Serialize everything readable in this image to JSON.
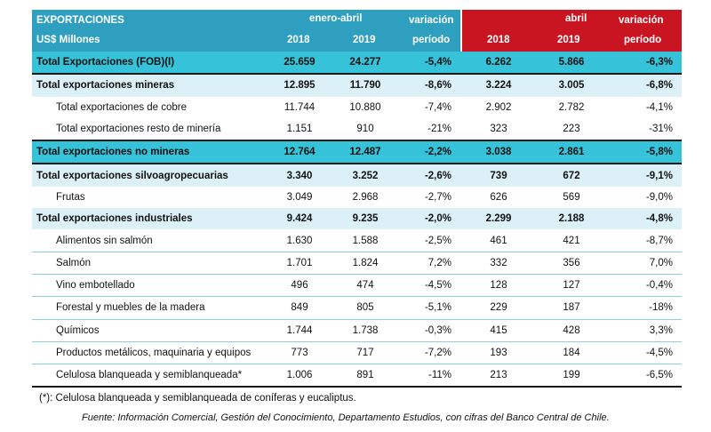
{
  "header": {
    "title": "EXPORTACIONES",
    "unit": "US$ Millones",
    "group1": "enero-abril",
    "group2": "abril",
    "year1": "2018",
    "year2": "2019",
    "variation_line1": "variación",
    "variation_line2": "período"
  },
  "rows": [
    {
      "label": "Total Exportaciones (FOB)(I)",
      "a": "25.659",
      "b": "24.277",
      "v1": "-5,4%",
      "c": "6.262",
      "d": "5.866",
      "v2": "-6,3%"
    },
    {
      "label": "Total exportaciones mineras",
      "a": "12.895",
      "b": "11.790",
      "v1": "-8,6%",
      "c": "3.224",
      "d": "3.005",
      "v2": "-6,8%"
    },
    {
      "label": "Total exportaciones de cobre",
      "a": "11.744",
      "b": "10.880",
      "v1": "-7,4%",
      "c": "2.902",
      "d": "2.782",
      "v2": "-4,1%"
    },
    {
      "label": "Total exportaciones resto de minería",
      "a": "1.151",
      "b": "910",
      "v1": "-21%",
      "c": "323",
      "d": "223",
      "v2": "-31%"
    },
    {
      "label": "Total exportaciones no mineras",
      "a": "12.764",
      "b": "12.487",
      "v1": "-2,2%",
      "c": "3.038",
      "d": "2.861",
      "v2": "-5,8%"
    },
    {
      "label": "Total exportaciones silvoagropecuarias",
      "a": "3.340",
      "b": "3.252",
      "v1": "-2,6%",
      "c": "739",
      "d": "672",
      "v2": "-9,1%"
    },
    {
      "label": "Frutas",
      "a": "3.049",
      "b": "2.968",
      "v1": "-2,7%",
      "c": "626",
      "d": "569",
      "v2": "-9,0%"
    },
    {
      "label": "Total exportaciones industriales",
      "a": "9.424",
      "b": "9.235",
      "v1": "-2,0%",
      "c": "2.299",
      "d": "2.188",
      "v2": "-4,8%"
    },
    {
      "label": "Alimentos sin salmón",
      "a": "1.630",
      "b": "1.588",
      "v1": "-2,5%",
      "c": "461",
      "d": "421",
      "v2": "-8,7%"
    },
    {
      "label": "Salmón",
      "a": "1.701",
      "b": "1.824",
      "v1": "7,2%",
      "c": "332",
      "d": "356",
      "v2": "7,0%"
    },
    {
      "label": "Vino embotellado",
      "a": "496",
      "b": "474",
      "v1": "-4,5%",
      "c": "128",
      "d": "127",
      "v2": "-0,4%"
    },
    {
      "label": "Forestal y muebles de la madera",
      "a": "849",
      "b": "805",
      "v1": "-5,1%",
      "c": "229",
      "d": "187",
      "v2": "-18%"
    },
    {
      "label": "Químicos",
      "a": "1.744",
      "b": "1.738",
      "v1": "-0,3%",
      "c": "415",
      "d": "428",
      "v2": "3,3%"
    },
    {
      "label": "Productos metálicos, maquinaria y equipos",
      "a": "773",
      "b": "717",
      "v1": "-7,2%",
      "c": "193",
      "d": "184",
      "v2": "-4,5%"
    },
    {
      "label": "Celulosa blanqueada y semiblanqueada*",
      "a": "1.006",
      "b": "891",
      "v1": "-11%",
      "c": "213",
      "d": "199",
      "v2": "-6,5%"
    }
  ],
  "footnote": "(*): Celulosa blanqueada y semiblanqueada de coníferas y eucaliptus.",
  "source": "Fuente: Información Comercial, Gestión del Conocimiento, Departamento Estudios, con cifras del Banco Central de Chile.",
  "colors": {
    "header_blue": "#2e9fbe",
    "header_red": "#c91521",
    "row_cyan": "#36c2d8",
    "row_light": "#dcf1f7"
  }
}
